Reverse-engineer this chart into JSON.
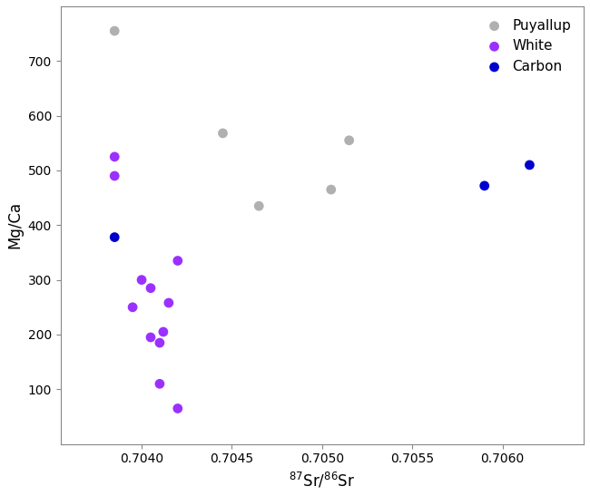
{
  "puyallup": {
    "x": [
      0.70385,
      0.70445,
      0.70465,
      0.70505,
      0.70515
    ],
    "y": [
      755,
      568,
      435,
      465,
      555
    ],
    "color": "#b0b0b0",
    "label": "Puyallup"
  },
  "white": {
    "x": [
      0.70385,
      0.70385,
      0.70395,
      0.704,
      0.70405,
      0.70405,
      0.7041,
      0.70412,
      0.7041,
      0.7042,
      0.70415,
      0.7042
    ],
    "y": [
      525,
      490,
      250,
      300,
      285,
      195,
      185,
      205,
      110,
      335,
      258,
      65
    ],
    "color": "#9b30ff",
    "label": "White"
  },
  "carbon": {
    "x": [
      0.70385,
      0.7059,
      0.70615
    ],
    "y": [
      378,
      472,
      510
    ],
    "color": "#0000cd",
    "label": "Carbon"
  },
  "xlabel": "$^{87}$Sr/$^{86}$Sr",
  "ylabel": "Mg/Ca",
  "xlim": [
    0.70355,
    0.70645
  ],
  "ylim": [
    0,
    800
  ],
  "yticks": [
    100,
    200,
    300,
    400,
    500,
    600,
    700
  ],
  "xticks": [
    0.704,
    0.7045,
    0.705,
    0.7055,
    0.706
  ],
  "background_color": "#ffffff",
  "panel_color": "#ffffff",
  "marker_size": 60,
  "legend_loc": "upper right"
}
